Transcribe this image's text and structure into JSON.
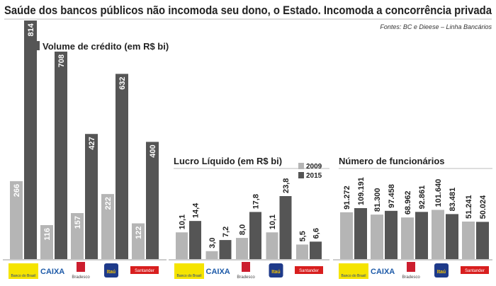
{
  "title": "Saúde dos bancos públicos não incomoda seu dono, o Estado. Incomoda a concorrência privada",
  "source": "Fontes: BC e Dieese – Linha Bancários",
  "legend": [
    {
      "label": "2009",
      "color": "#b5b5b5"
    },
    {
      "label": "2015",
      "color": "#555555"
    }
  ],
  "banks": [
    "Banco do Brasil",
    "CAIXA",
    "Bradesco",
    "Itaú",
    "Santander"
  ],
  "bank_colors": {
    "bb": "#f5e400",
    "caixa": "#1d5aa8",
    "bradesco": "#cc1d2e",
    "itau": "#1e3a8a",
    "santander": "#d81e1e"
  },
  "chart_data": [
    {
      "type": "bar",
      "title": "Volume de crédito (em R$ bi)",
      "categories": [
        "Banco do Brasil",
        "CAIXA",
        "Bradesco",
        "Itaú",
        "Santander"
      ],
      "series": [
        {
          "name": "2009",
          "values": [
            266,
            116,
            157,
            222,
            122
          ],
          "labels": [
            "266",
            "116",
            "157",
            "222",
            "122"
          ]
        },
        {
          "name": "2015",
          "values": [
            814,
            708,
            427,
            632,
            400
          ],
          "labels": [
            "814",
            "708",
            "427",
            "632",
            "400"
          ]
        }
      ]
    },
    {
      "type": "bar",
      "title": "Lucro Líquido (em R$ bi)",
      "categories": [
        "Banco do Brasil",
        "CAIXA",
        "Bradesco",
        "Itaú",
        "Santander"
      ],
      "series": [
        {
          "name": "2009",
          "values": [
            10.1,
            3.0,
            8.0,
            10.1,
            5.5
          ],
          "labels": [
            "10,1",
            "3,0",
            "8,0",
            "10,1",
            "5,5"
          ]
        },
        {
          "name": "2015",
          "values": [
            14.4,
            7.2,
            17.8,
            23.8,
            6.6
          ],
          "labels": [
            "14,4",
            "7,2",
            "17,8",
            "23,8",
            "6,6"
          ]
        }
      ]
    },
    {
      "type": "bar",
      "title": "Número de funcionários",
      "categories": [
        "Banco do Brasil",
        "CAIXA",
        "Bradesco",
        "Itaú",
        "Santander"
      ],
      "series": [
        {
          "name": "2009",
          "values": [
            91272,
            81300,
            68962,
            101640,
            51241
          ],
          "labels": [
            "91.272",
            "81.300",
            "68.962",
            "101.640",
            "51.241"
          ]
        },
        {
          "name": "2015",
          "values": [
            109191,
            97458,
            92861,
            83481,
            50024
          ],
          "labels": [
            "109.191",
            "97.458",
            "92.861",
            "83.481",
            "50.024"
          ]
        }
      ]
    }
  ]
}
